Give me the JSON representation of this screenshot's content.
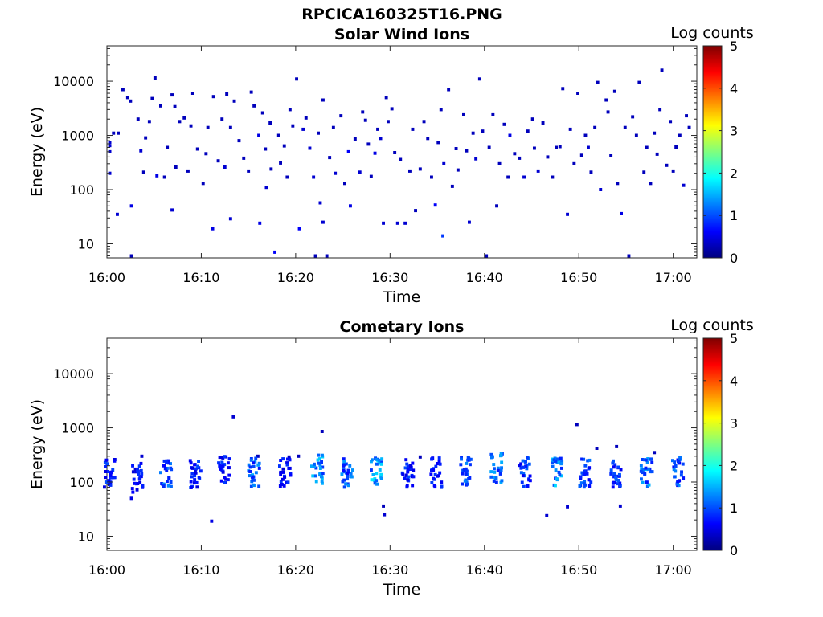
{
  "figure_title": "RPCICA160325T16.PNG",
  "colors": {
    "axis": "#262626",
    "colormap": [
      "#00007f",
      "#0000ff",
      "#007fff",
      "#00ffff",
      "#7fff7f",
      "#ffff00",
      "#ff7f00",
      "#ff0000",
      "#7f0000"
    ]
  },
  "chart_data": [
    {
      "type": "heatmap",
      "title": "Solar Wind Ions",
      "xlabel": "Time",
      "ylabel": "Energy (eV)",
      "x_ticks": [
        "16:00",
        "16:10",
        "16:20",
        "16:30",
        "16:40",
        "16:50",
        "17:00"
      ],
      "x_range_min": [
        0,
        62.5
      ],
      "y_scale": "log",
      "y_range_ev": [
        5.5,
        45000
      ],
      "y_ticks": [
        {
          "value": 10,
          "label": "10"
        },
        {
          "value": 100,
          "label": "100"
        },
        {
          "value": 1000,
          "label": "1000"
        },
        {
          "value": 10000,
          "label": "10000"
        }
      ],
      "colorbar": {
        "label": "Log counts",
        "range": [
          0,
          5
        ],
        "ticks": [
          "0",
          "1",
          "2",
          "3",
          "4",
          "5"
        ]
      },
      "points": [
        [
          0.3,
          650,
          0.4
        ],
        [
          0.3,
          500,
          0.4
        ],
        [
          0.3,
          200,
          0.4
        ],
        [
          0.3,
          750,
          0.4
        ],
        [
          0.7,
          1100,
          0.3
        ],
        [
          1.2,
          1100,
          0.3
        ],
        [
          1.1,
          35,
          0.4
        ],
        [
          1.7,
          7000,
          0.3
        ],
        [
          2.2,
          5000,
          0.3
        ],
        [
          2.5,
          4300,
          0.3
        ],
        [
          2.6,
          50,
          0.5
        ],
        [
          2.6,
          6,
          0.3
        ],
        [
          3.3,
          2000,
          0.3
        ],
        [
          3.6,
          520,
          0.4
        ],
        [
          3.9,
          210,
          0.3
        ],
        [
          4.1,
          900,
          0.3
        ],
        [
          4.5,
          1800,
          0.3
        ],
        [
          4.8,
          4800,
          0.3
        ],
        [
          5.1,
          11500,
          0.3
        ],
        [
          5.3,
          180,
          0.5
        ],
        [
          5.7,
          3500,
          0.3
        ],
        [
          6.1,
          170,
          0.3
        ],
        [
          6.4,
          600,
          0.3
        ],
        [
          6.9,
          5600,
          0.3
        ],
        [
          6.9,
          42,
          0.4
        ],
        [
          7.2,
          3400,
          0.3
        ],
        [
          7.3,
          260,
          0.3
        ],
        [
          7.7,
          1800,
          0.3
        ],
        [
          8.2,
          2100,
          0.3
        ],
        [
          8.6,
          220,
          0.3
        ],
        [
          8.9,
          1500,
          0.3
        ],
        [
          9.1,
          6000,
          0.3
        ],
        [
          9.6,
          560,
          0.3
        ],
        [
          10.2,
          130,
          0.3
        ],
        [
          10.5,
          460,
          0.3
        ],
        [
          10.7,
          1400,
          0.3
        ],
        [
          11.2,
          19,
          0.5
        ],
        [
          11.3,
          5200,
          0.3
        ],
        [
          11.8,
          340,
          0.3
        ],
        [
          12.2,
          2000,
          0.3
        ],
        [
          12.5,
          260,
          0.4
        ],
        [
          12.7,
          5800,
          0.3
        ],
        [
          13.1,
          1400,
          0.3
        ],
        [
          13.1,
          29,
          0.4
        ],
        [
          13.5,
          4300,
          0.3
        ],
        [
          14.0,
          800,
          0.3
        ],
        [
          14.5,
          380,
          0.3
        ],
        [
          15.0,
          220,
          0.3
        ],
        [
          15.3,
          6300,
          0.3
        ],
        [
          15.6,
          3500,
          0.3
        ],
        [
          16.1,
          1000,
          0.5
        ],
        [
          16.2,
          24,
          0.5
        ],
        [
          16.5,
          2600,
          0.3
        ],
        [
          16.8,
          560,
          0.3
        ],
        [
          16.9,
          110,
          0.4
        ],
        [
          17.3,
          1700,
          0.3
        ],
        [
          17.4,
          240,
          0.3
        ],
        [
          17.8,
          7,
          0.6
        ],
        [
          18.2,
          1000,
          0.3
        ],
        [
          18.4,
          310,
          0.3
        ],
        [
          18.8,
          640,
          0.3
        ],
        [
          19.1,
          170,
          0.3
        ],
        [
          19.4,
          3000,
          0.3
        ],
        [
          19.7,
          1500,
          0.3
        ],
        [
          20.1,
          11000,
          0.3
        ],
        [
          20.4,
          19,
          0.6
        ],
        [
          20.8,
          1300,
          0.4
        ],
        [
          21.1,
          2100,
          0.3
        ],
        [
          21.5,
          580,
          0.4
        ],
        [
          21.9,
          170,
          0.4
        ],
        [
          22.1,
          6,
          0.3
        ],
        [
          22.4,
          1100,
          0.3
        ],
        [
          22.6,
          57,
          0.4
        ],
        [
          22.9,
          4500,
          0.3
        ],
        [
          22.9,
          25,
          0.4
        ],
        [
          23.3,
          6,
          0.3
        ],
        [
          23.6,
          390,
          0.3
        ],
        [
          24.0,
          1400,
          0.3
        ],
        [
          24.2,
          200,
          0.4
        ],
        [
          24.8,
          2300,
          0.3
        ],
        [
          25.2,
          130,
          0.3
        ],
        [
          25.6,
          500,
          0.6
        ],
        [
          25.8,
          50,
          0.5
        ],
        [
          26.3,
          860,
          0.3
        ],
        [
          26.8,
          210,
          0.4
        ],
        [
          27.1,
          2700,
          0.3
        ],
        [
          27.4,
          1900,
          0.3
        ],
        [
          27.7,
          690,
          0.3
        ],
        [
          28.0,
          175,
          0.3
        ],
        [
          28.4,
          470,
          0.5
        ],
        [
          28.7,
          1300,
          0.3
        ],
        [
          29.0,
          880,
          0.4
        ],
        [
          29.3,
          24,
          0.4
        ],
        [
          29.6,
          5000,
          0.3
        ],
        [
          29.8,
          1800,
          0.3
        ],
        [
          30.2,
          3100,
          0.3
        ],
        [
          30.5,
          480,
          0.3
        ],
        [
          30.8,
          24,
          0.4
        ],
        [
          31.1,
          360,
          0.3
        ],
        [
          31.6,
          24,
          0.4
        ],
        [
          32.1,
          220,
          0.3
        ],
        [
          32.4,
          1300,
          0.3
        ],
        [
          32.7,
          41,
          0.3
        ],
        [
          33.2,
          240,
          0.3
        ],
        [
          33.6,
          1800,
          0.3
        ],
        [
          34.0,
          880,
          0.3
        ],
        [
          34.4,
          170,
          0.3
        ],
        [
          34.8,
          52,
          0.6
        ],
        [
          35.1,
          740,
          0.3
        ],
        [
          35.4,
          3000,
          0.3
        ],
        [
          35.6,
          14,
          0.9
        ],
        [
          35.7,
          300,
          0.4
        ],
        [
          36.2,
          7000,
          0.3
        ],
        [
          36.6,
          115,
          0.3
        ],
        [
          37.0,
          570,
          0.3
        ],
        [
          37.2,
          230,
          0.3
        ],
        [
          37.8,
          2400,
          0.3
        ],
        [
          38.1,
          520,
          0.3
        ],
        [
          38.4,
          25,
          0.4
        ],
        [
          38.8,
          1100,
          0.3
        ],
        [
          39.1,
          370,
          0.4
        ],
        [
          39.5,
          11000,
          0.3
        ],
        [
          39.8,
          1200,
          0.3
        ],
        [
          40.2,
          6,
          0.3
        ],
        [
          40.5,
          600,
          0.3
        ],
        [
          40.9,
          2400,
          0.3
        ],
        [
          41.3,
          50,
          0.3
        ],
        [
          41.6,
          300,
          0.3
        ],
        [
          42.1,
          1600,
          0.3
        ],
        [
          42.5,
          170,
          0.3
        ],
        [
          42.7,
          1000,
          0.5
        ],
        [
          43.2,
          460,
          0.3
        ],
        [
          43.7,
          380,
          0.3
        ],
        [
          44.2,
          170,
          0.4
        ],
        [
          44.6,
          1200,
          0.3
        ],
        [
          45.1,
          2000,
          0.3
        ],
        [
          45.3,
          580,
          0.3
        ],
        [
          45.7,
          220,
          0.4
        ],
        [
          46.2,
          1700,
          0.3
        ],
        [
          46.7,
          400,
          0.3
        ],
        [
          47.2,
          170,
          0.3
        ],
        [
          47.6,
          600,
          0.3
        ],
        [
          48.0,
          620,
          0.3
        ],
        [
          48.3,
          7300,
          0.3
        ],
        [
          48.8,
          35,
          0.4
        ],
        [
          49.1,
          1300,
          0.3
        ],
        [
          49.5,
          300,
          0.3
        ],
        [
          49.9,
          6000,
          0.3
        ],
        [
          50.3,
          430,
          0.3
        ],
        [
          50.7,
          1000,
          0.3
        ],
        [
          51.0,
          600,
          0.4
        ],
        [
          51.3,
          210,
          0.3
        ],
        [
          51.7,
          1400,
          0.3
        ],
        [
          52.0,
          9500,
          0.3
        ],
        [
          52.3,
          100,
          0.4
        ],
        [
          52.9,
          4500,
          0.3
        ],
        [
          53.1,
          2700,
          0.3
        ],
        [
          53.4,
          420,
          0.3
        ],
        [
          53.8,
          6500,
          0.3
        ],
        [
          54.1,
          130,
          0.3
        ],
        [
          54.5,
          36,
          0.5
        ],
        [
          54.9,
          1400,
          0.3
        ],
        [
          55.3,
          6,
          0.3
        ],
        [
          55.7,
          2200,
          0.3
        ],
        [
          56.1,
          1000,
          0.3
        ],
        [
          56.4,
          9500,
          0.3
        ],
        [
          56.9,
          210,
          0.3
        ],
        [
          57.2,
          600,
          0.3
        ],
        [
          57.6,
          130,
          0.3
        ],
        [
          58.0,
          1100,
          0.3
        ],
        [
          58.3,
          450,
          0.3
        ],
        [
          58.6,
          3000,
          0.3
        ],
        [
          58.8,
          16000,
          0.3
        ],
        [
          59.3,
          280,
          0.3
        ],
        [
          59.7,
          1800,
          0.3
        ],
        [
          60.0,
          220,
          0.3
        ],
        [
          60.3,
          610,
          0.3
        ],
        [
          60.7,
          1000,
          0.3
        ],
        [
          61.1,
          120,
          0.4
        ],
        [
          61.4,
          2300,
          0.3
        ],
        [
          61.7,
          1400,
          0.3
        ]
      ]
    },
    {
      "type": "heatmap",
      "title": "Cometary Ions",
      "xlabel": "Time",
      "ylabel": "Energy (eV)",
      "x_ticks": [
        "16:00",
        "16:10",
        "16:20",
        "16:30",
        "16:40",
        "16:50",
        "17:00"
      ],
      "x_range_min": [
        0,
        62.5
      ],
      "y_scale": "log",
      "y_range_ev": [
        5.5,
        45000
      ],
      "y_ticks": [
        {
          "value": 10,
          "label": "10"
        },
        {
          "value": 100,
          "label": "100"
        },
        {
          "value": 1000,
          "label": "1000"
        },
        {
          "value": 10000,
          "label": "10000"
        }
      ],
      "colorbar": {
        "label": "Log counts",
        "range": [
          0,
          5
        ],
        "ticks": [
          "0",
          "1",
          "2",
          "3",
          "4",
          "5"
        ]
      },
      "bursts": [
        {
          "t": 0.3,
          "e": 150,
          "peak": 1.0
        },
        {
          "t": 3.3,
          "e": 120,
          "peak": 0.9
        },
        {
          "t": 6.3,
          "e": 150,
          "peak": 1.3
        },
        {
          "t": 9.4,
          "e": 140,
          "peak": 1.0
        },
        {
          "t": 12.4,
          "e": 170,
          "peak": 1.0
        },
        {
          "t": 15.6,
          "e": 150,
          "peak": 1.5
        },
        {
          "t": 18.9,
          "e": 150,
          "peak": 0.9
        },
        {
          "t": 22.3,
          "e": 175,
          "peak": 1.7
        },
        {
          "t": 25.5,
          "e": 150,
          "peak": 1.4
        },
        {
          "t": 28.6,
          "e": 170,
          "peak": 1.9
        },
        {
          "t": 31.9,
          "e": 150,
          "peak": 1.0
        },
        {
          "t": 34.9,
          "e": 150,
          "peak": 1.0
        },
        {
          "t": 38.1,
          "e": 160,
          "peak": 1.3
        },
        {
          "t": 41.3,
          "e": 180,
          "peak": 1.5
        },
        {
          "t": 44.3,
          "e": 150,
          "peak": 1.2
        },
        {
          "t": 47.7,
          "e": 150,
          "peak": 1.7
        },
        {
          "t": 50.7,
          "e": 150,
          "peak": 1.2
        },
        {
          "t": 53.9,
          "e": 150,
          "peak": 1.2
        },
        {
          "t": 57.2,
          "e": 150,
          "peak": 1.5
        },
        {
          "t": 60.5,
          "e": 150,
          "peak": 1.3
        }
      ],
      "points": [
        [
          2.6,
          50,
          0.5
        ],
        [
          3.7,
          300,
          0.4
        ],
        [
          11.1,
          19,
          0.5
        ],
        [
          13.4,
          1600,
          0.4
        ],
        [
          16.0,
          300,
          0.3
        ],
        [
          19.3,
          290,
          0.3
        ],
        [
          22.8,
          860,
          0.3
        ],
        [
          29.3,
          36,
          0.3
        ],
        [
          29.4,
          25,
          0.4
        ],
        [
          33.2,
          290,
          0.3
        ],
        [
          46.6,
          24,
          0.4
        ],
        [
          48.8,
          35,
          0.4
        ],
        [
          49.8,
          1150,
          0.3
        ],
        [
          51.9,
          420,
          0.3
        ],
        [
          54.4,
          36,
          0.4
        ],
        [
          54.0,
          450,
          0.3
        ],
        [
          58.0,
          350,
          0.3
        ],
        [
          20.3,
          300,
          0.3
        ]
      ]
    }
  ]
}
